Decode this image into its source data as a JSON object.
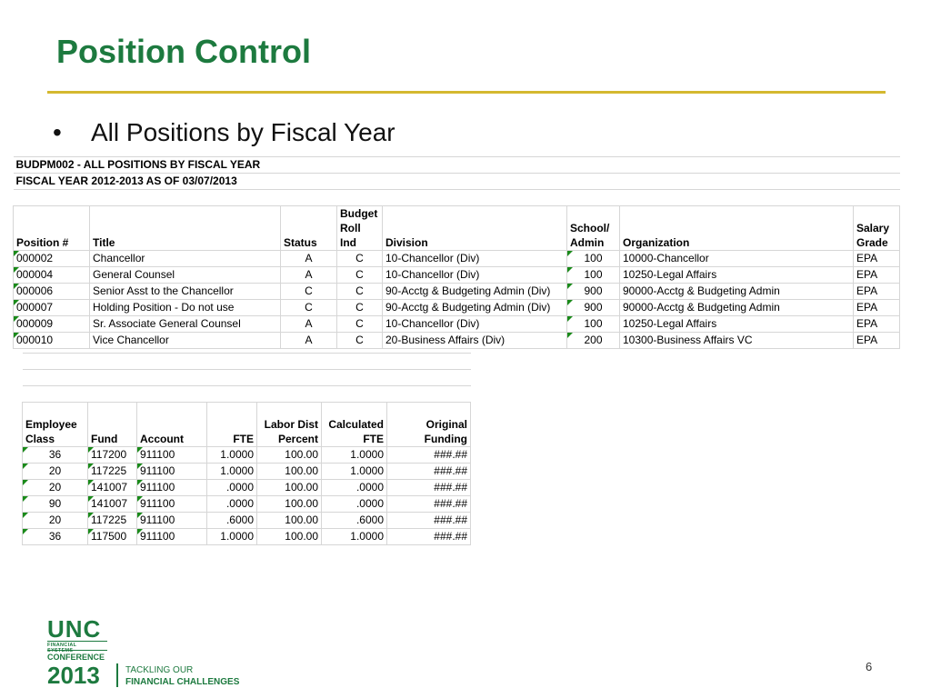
{
  "slide": {
    "title": "Position Control",
    "bullet": "All Positions by Fiscal Year",
    "page_number": "6"
  },
  "report1": {
    "title": "BUDPM002 - ALL POSITIONS BY FISCAL YEAR",
    "subtitle": "FISCAL YEAR 2012-2013 AS OF 03/07/2013",
    "headers": [
      "Position #",
      "Title",
      "Status",
      "Budget Roll Ind",
      "Division",
      "School/ Admin",
      "Organization",
      "Salary Grade"
    ],
    "rows": [
      [
        "000002",
        "Chancellor",
        "A",
        "C",
        "10-Chancellor (Div)",
        "100",
        "10000-Chancellor",
        "EPA"
      ],
      [
        "000004",
        "General Counsel",
        "A",
        "C",
        "10-Chancellor (Div)",
        "100",
        "10250-Legal Affairs",
        "EPA"
      ],
      [
        "000006",
        "Senior Asst to the Chancellor",
        "C",
        "C",
        "90-Acctg & Budgeting Admin (Div)",
        "900",
        "90000-Acctg & Budgeting Admin",
        "EPA"
      ],
      [
        "000007",
        "Holding Position - Do not use",
        "C",
        "C",
        "90-Acctg & Budgeting Admin (Div)",
        "900",
        "90000-Acctg & Budgeting Admin",
        "EPA"
      ],
      [
        "000009",
        "Sr. Associate General Counsel",
        "A",
        "C",
        "10-Chancellor (Div)",
        "100",
        "10250-Legal Affairs",
        "EPA"
      ],
      [
        "000010",
        "Vice Chancellor",
        "A",
        "C",
        "20-Business Affairs (Div)",
        "200",
        "10300-Business Affairs VC",
        "EPA"
      ]
    ]
  },
  "report2": {
    "headers": [
      "Employee Class",
      "Fund",
      "Account",
      "FTE",
      "Labor Dist Percent",
      "Calculated FTE",
      "Original Funding"
    ],
    "rows": [
      [
        "36",
        "117200",
        "911100",
        "1.0000",
        "100.00",
        "1.0000",
        "###.##"
      ],
      [
        "20",
        "117225",
        "911100",
        "1.0000",
        "100.00",
        "1.0000",
        "###.##"
      ],
      [
        "20",
        "141007",
        "911100",
        ".0000",
        "100.00",
        ".0000",
        "###.##"
      ],
      [
        "90",
        "141007",
        "911100",
        ".0000",
        "100.00",
        ".0000",
        "###.##"
      ],
      [
        "20",
        "117225",
        "911100",
        ".6000",
        "100.00",
        ".6000",
        "###.##"
      ],
      [
        "36",
        "117500",
        "911100",
        "1.0000",
        "100.00",
        "1.0000",
        "###.##"
      ]
    ]
  },
  "logo": {
    "name": "UNC",
    "line1": "FINANCIAL SYSTEMS",
    "line2": "CONFERENCE",
    "year": "2013",
    "tagline1": "TACKLING OUR",
    "tagline2": "FINANCIAL CHALLENGES"
  },
  "colors": {
    "title_green": "#1d7a3f",
    "rule_gold": "#d4b82f",
    "cell_flag_green": "#1a8a1a"
  }
}
